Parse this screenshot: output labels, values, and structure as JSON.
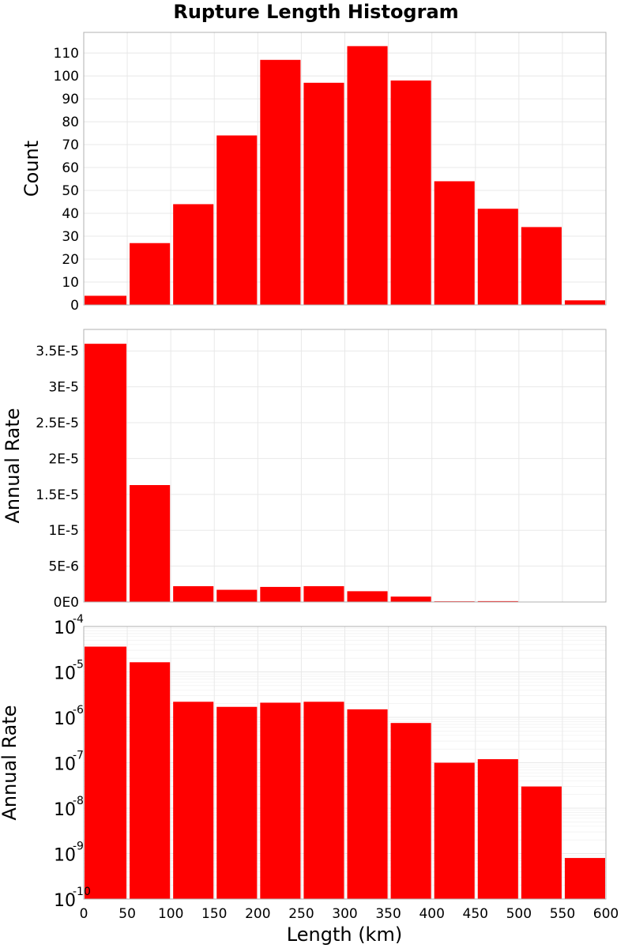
{
  "chart_data": {
    "type": "bar",
    "title": "Rupture Length Histogram",
    "bar_color": "#ff0000",
    "grid": true,
    "shared_x": {
      "label": "Length (km)",
      "lim": [
        0,
        600
      ],
      "ticks": [
        0,
        50,
        100,
        150,
        200,
        250,
        300,
        350,
        400,
        450,
        500,
        550,
        600
      ],
      "tick_labels": [
        "0",
        "50",
        "100",
        "150",
        "200",
        "250",
        "300",
        "350",
        "400",
        "450",
        "500",
        "550",
        "600"
      ]
    },
    "bin_centers": [
      25,
      75,
      125,
      175,
      225,
      275,
      325,
      375,
      425,
      475,
      525,
      575
    ],
    "panels": [
      {
        "ylabel": "Count",
        "yscale": "linear",
        "ylim": [
          0,
          119
        ],
        "yticks": [
          0,
          10,
          20,
          30,
          40,
          50,
          60,
          70,
          80,
          90,
          100,
          110
        ],
        "ytick_labels": [
          "0",
          "10",
          "20",
          "30",
          "40",
          "50",
          "60",
          "70",
          "80",
          "90",
          "100",
          "110"
        ],
        "values": [
          4,
          27,
          44,
          74,
          107,
          97,
          113,
          98,
          54,
          42,
          34,
          2
        ]
      },
      {
        "ylabel": "Annual Rate",
        "yscale": "linear",
        "ylim": [
          0,
          3.8e-05
        ],
        "yticks": [
          0,
          5e-06,
          1e-05,
          1.5e-05,
          2e-05,
          2.5e-05,
          3e-05,
          3.5e-05
        ],
        "ytick_labels": [
          "0E0",
          "5E-6",
          "1E-5",
          "1.5E-5",
          "2E-5",
          "2.5E-5",
          "3E-5",
          "3.5E-5"
        ],
        "values": [
          3.6e-05,
          1.63e-05,
          2.2e-06,
          1.7e-06,
          2.1e-06,
          2.2e-06,
          1.5e-06,
          7.5e-07,
          1e-07,
          1.2e-07,
          3e-08,
          8e-10
        ]
      },
      {
        "ylabel": "Annual Rate",
        "yscale": "log",
        "ylim": [
          1e-10,
          0.0001
        ],
        "yticks": [
          1e-10,
          1e-09,
          1e-08,
          1e-07,
          1e-06,
          1e-05,
          0.0001
        ],
        "ytick_base_label": "10",
        "ytick_exponents": [
          "-10",
          "-9",
          "-8",
          "-7",
          "-6",
          "-5",
          "-4"
        ],
        "values": [
          3.6e-05,
          1.63e-05,
          2.2e-06,
          1.7e-06,
          2.1e-06,
          2.2e-06,
          1.5e-06,
          7.5e-07,
          1e-07,
          1.2e-07,
          3e-08,
          8e-10
        ]
      }
    ]
  }
}
